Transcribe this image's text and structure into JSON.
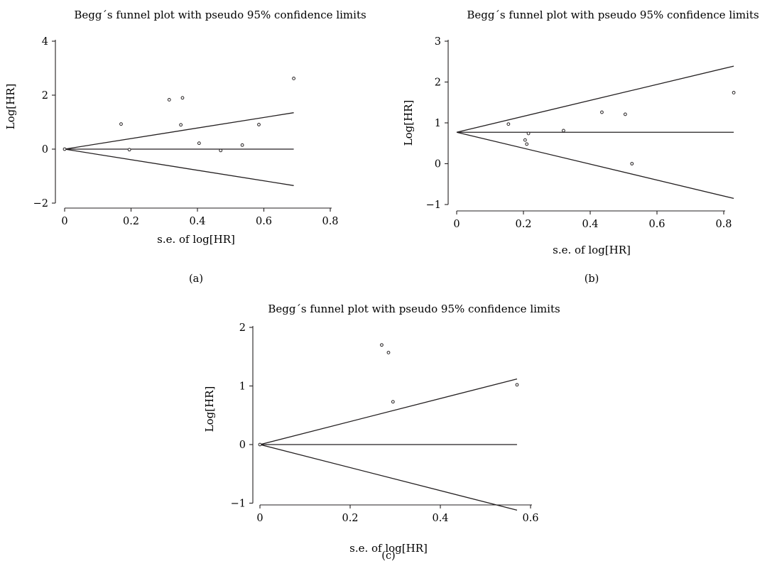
{
  "chart_data": [
    {
      "type": "scatter",
      "panel_label": "(a)",
      "title": "Begg´s funnel plot with pseudo 95% confidence limits",
      "xlabel": "s.e. of log[HR]",
      "ylabel": "Log[HR]",
      "xlim": [
        0,
        0.8
      ],
      "ylim": [
        -2,
        4
      ],
      "xticks": [
        0,
        0.2,
        0.4,
        0.6,
        0.8
      ],
      "xtick_labels": [
        "0",
        "0.2",
        "0.4",
        "0.6",
        "0.8"
      ],
      "yticks": [
        -2,
        0,
        2,
        4
      ],
      "ytick_labels": [
        "−2",
        "0",
        "2",
        "4"
      ],
      "pooled_estimate": 0,
      "ci_upper": [
        [
          0,
          0
        ],
        [
          0.69,
          1.35
        ]
      ],
      "ci_lower": [
        [
          0,
          0
        ],
        [
          0.69,
          -1.35
        ]
      ],
      "points": [
        {
          "x": 0.17,
          "y": 0.93
        },
        {
          "x": 0.195,
          "y": -0.02
        },
        {
          "x": 0.315,
          "y": 1.83
        },
        {
          "x": 0.355,
          "y": 1.9
        },
        {
          "x": 0.35,
          "y": 0.9
        },
        {
          "x": 0.405,
          "y": 0.22
        },
        {
          "x": 0.47,
          "y": -0.05
        },
        {
          "x": 0.535,
          "y": 0.15
        },
        {
          "x": 0.585,
          "y": 0.91
        },
        {
          "x": 0.69,
          "y": 2.62
        },
        {
          "x": 0.0,
          "y": 0.0
        }
      ]
    },
    {
      "type": "scatter",
      "panel_label": "(b)",
      "title": "Begg´s funnel plot with pseudo 95% confidence limits",
      "xlabel": "s.e. of log[HR]",
      "ylabel": "Log[HR]",
      "xlim": [
        0,
        0.83
      ],
      "ylim": [
        -1,
        3
      ],
      "xticks": [
        0,
        0.2,
        0.4,
        0.6,
        0.8
      ],
      "xtick_labels": [
        "0",
        "0.2",
        "0.4",
        "0.6",
        "0.8"
      ],
      "yticks": [
        -1,
        0,
        1,
        2,
        3
      ],
      "ytick_labels": [
        "−1",
        "0",
        "1",
        "2",
        "3"
      ],
      "pooled_estimate": 0.77,
      "ci_upper": [
        [
          0,
          0.77
        ],
        [
          0.83,
          2.39
        ]
      ],
      "ci_lower": [
        [
          0,
          0.77
        ],
        [
          0.83,
          -0.85
        ]
      ],
      "points": [
        {
          "x": 0.155,
          "y": 0.97
        },
        {
          "x": 0.205,
          "y": 0.58
        },
        {
          "x": 0.21,
          "y": 0.48
        },
        {
          "x": 0.215,
          "y": 0.74
        },
        {
          "x": 0.32,
          "y": 0.81
        },
        {
          "x": 0.435,
          "y": 1.26
        },
        {
          "x": 0.505,
          "y": 1.21
        },
        {
          "x": 0.525,
          "y": 0.0
        },
        {
          "x": 0.83,
          "y": 1.74
        }
      ]
    },
    {
      "type": "scatter",
      "panel_label": "(c)",
      "title": "Begg´s funnel plot with pseudo 95% confidence limits",
      "xlabel": "s.e. of log[HR]",
      "ylabel": "Log[HR]",
      "xlim": [
        0,
        0.6
      ],
      "ylim": [
        -1,
        2
      ],
      "xticks": [
        0,
        0.2,
        0.4,
        0.6
      ],
      "xtick_labels": [
        "0",
        "0.2",
        "0.4",
        "0.6"
      ],
      "yticks": [
        -1,
        0,
        1,
        2
      ],
      "ytick_labels": [
        "−1",
        "0",
        "1",
        "2"
      ],
      "pooled_estimate": 0,
      "ci_upper": [
        [
          0,
          0
        ],
        [
          0.57,
          1.12
        ]
      ],
      "ci_lower": [
        [
          0,
          0
        ],
        [
          0.57,
          -1.12
        ]
      ],
      "points": [
        {
          "x": 0.27,
          "y": 1.7
        },
        {
          "x": 0.285,
          "y": 1.57
        },
        {
          "x": 0.295,
          "y": 0.73
        },
        {
          "x": 0.57,
          "y": 1.02
        },
        {
          "x": 0.0,
          "y": 0.0
        }
      ]
    }
  ]
}
